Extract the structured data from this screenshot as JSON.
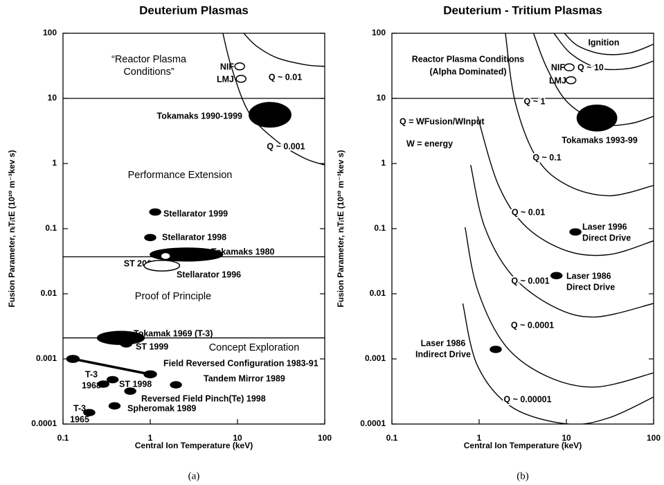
{
  "chart_data": [
    {
      "type": "scatter",
      "title": "Deuterium Plasmas",
      "caption": "(a)",
      "xlabel": "Central Ion Temperature (keV)",
      "ylabel": "Fusion Parameter, nᵢTᵢτE (10²⁰ m⁻³kev s)",
      "log_x": true,
      "log_y": true,
      "xlim": [
        0.1,
        100
      ],
      "ylim": [
        0.0001,
        100
      ],
      "xticks": [
        0.1,
        1,
        10,
        100
      ],
      "yticks": [
        0.0001,
        0.001,
        0.01,
        0.1,
        1,
        10,
        100
      ],
      "boundaries": [
        10,
        0.037,
        0.0021
      ],
      "regions": [
        {
          "label": [
            "“Reactor Plasma",
            "Conditions”"
          ]
        },
        {
          "label": [
            "Performance Extension"
          ]
        },
        {
          "label": [
            "Proof of Principle"
          ]
        },
        {
          "label": [
            "Concept Exploration"
          ]
        }
      ],
      "curves": [
        {
          "label": "Q ~ 0.01",
          "x": [
            11.8,
            16.4,
            28.3,
            58.9,
            100
          ],
          "y": [
            100,
            64,
            42,
            33,
            31
          ]
        },
        {
          "label": "Q ~ 0.001",
          "x": [
            6.8,
            8.6,
            13.6,
            28.3,
            58.9,
            100
          ],
          "y": [
            100,
            29,
            6.0,
            2.2,
            1.2,
            0.95
          ]
        }
      ],
      "points": [
        {
          "label": [
            "NIF"
          ],
          "x": 10.6,
          "y": 31,
          "style": "open"
        },
        {
          "label": [
            "LMJ"
          ],
          "x": 11,
          "y": 20,
          "style": "open"
        },
        {
          "label": [
            "Tokamaks 1990-1999"
          ],
          "x": 23.6,
          "y": 5.6,
          "style": "filled",
          "x_span": [
            13.6,
            41
          ],
          "y_span": [
            3.6,
            8.6
          ]
        },
        {
          "label": [
            "Stellarator 1999"
          ],
          "x": 1.14,
          "y": 0.18,
          "style": "filled"
        },
        {
          "label": [
            "Stellarator 1998"
          ],
          "x": 1.0,
          "y": 0.073,
          "style": "filled"
        },
        {
          "label": [
            "Tokamaks 1980"
          ],
          "x": 2.6,
          "y": 0.04,
          "style": "filled",
          "x_span": [
            1.0,
            6.8
          ],
          "y_span": [
            0.031,
            0.049
          ]
        },
        {
          "label": [
            "ST 2001"
          ],
          "x": 1.5,
          "y": 0.038,
          "style": "open"
        },
        {
          "label": [
            "Stellarator 1996"
          ],
          "x": 1.36,
          "y": 0.027,
          "style": "open",
          "x_span": [
            0.86,
            2.2
          ],
          "y_span": [
            0.022,
            0.032
          ]
        },
        {
          "label": [
            "Tokamak 1969 (T-3)"
          ],
          "x": 0.46,
          "y": 0.0021,
          "style": "filled",
          "x_span": [
            0.25,
            0.86
          ],
          "y_span": [
            0.0017,
            0.0027
          ]
        },
        {
          "label": [
            "ST 1999"
          ],
          "x": 0.53,
          "y": 0.0017,
          "style": "filled"
        },
        {
          "label": [
            "Field Reversed Configuration 1983-91"
          ],
          "x": [
            0.13,
            1.0
          ],
          "y": [
            0.001,
            0.00058
          ],
          "style": "filled"
        },
        {
          "label": [
            "ST  1998"
          ],
          "x": 0.37,
          "y": 0.00048,
          "style": "filled"
        },
        {
          "label": [
            "T-3",
            "1968"
          ],
          "x": 0.29,
          "y": 0.00041,
          "style": "filled"
        },
        {
          "label": [
            "Tandem Mirror 1989"
          ],
          "x": 1.97,
          "y": 0.0004,
          "style": "filled"
        },
        {
          "label": [
            "Reversed Field Pinch(Te)    1998"
          ],
          "x": 0.59,
          "y": 0.00032,
          "style": "filled"
        },
        {
          "label": [
            "Spheromak 1989"
          ],
          "x": 0.39,
          "y": 0.00019,
          "style": "filled"
        },
        {
          "label": [
            "T-3",
            "1965"
          ],
          "x": 0.2,
          "y": 0.00015,
          "style": "filled"
        }
      ]
    },
    {
      "type": "scatter",
      "title": "Deuterium - Tritium Plasmas",
      "caption": "(b)",
      "xlabel": "Central Ion Temperature (keV)",
      "ylabel": "Fusion Parameter, nᵢTᵢτE (10²⁰ m⁻³kev s)",
      "log_x": true,
      "log_y": true,
      "xlim": [
        0.1,
        100
      ],
      "ylim": [
        0.0001,
        100
      ],
      "xticks": [
        0.1,
        1,
        10,
        100
      ],
      "yticks": [
        0.0001,
        0.001,
        0.01,
        0.1,
        1,
        10,
        100
      ],
      "boundaries": [
        10
      ],
      "regions": [
        {
          "label": [
            "Reactor Plasma Conditions",
            "(Alpha Dominated)"
          ]
        },
        {
          "label": [
            "Q  = WFusion/WInput"
          ]
        },
        {
          "label": [
            "W = energy"
          ]
        }
      ],
      "curves": [
        {
          "label": "Ignition",
          "x": [
            9.5,
            13.6,
            25.9,
            53.7,
            100
          ],
          "y": [
            100,
            64,
            48,
            50,
            68
          ]
        },
        {
          "label": "Q ~ 10",
          "x": [
            7.2,
            11.4,
            23.6,
            53.7,
            100
          ],
          "y": [
            100,
            48,
            29,
            29,
            37.5
          ]
        },
        {
          "label": "Q ~ 1",
          "x": [
            4.2,
            6.0,
            10.4,
            25.9,
            53.7,
            100
          ],
          "y": [
            100,
            29,
            8.6,
            4.1,
            4.1,
            5.3
          ]
        },
        {
          "label": "Q ~ 0.1",
          "x": [
            2.0,
            2.6,
            4.6,
            10.4,
            31,
            100
          ],
          "y": [
            100,
            8.6,
            1.2,
            0.46,
            0.32,
            0.46
          ]
        },
        {
          "label": "Q ~ 0.01",
          "x": [
            0.96,
            1.67,
            3.5,
            10.4,
            31,
            100
          ],
          "y": [
            5.3,
            0.46,
            0.105,
            0.045,
            0.04,
            0.065
          ]
        },
        {
          "label": "Q ~ 0.001",
          "x": [
            0.8,
            1.16,
            2.4,
            7.2,
            21.5,
            100
          ],
          "y": [
            0.95,
            0.105,
            0.019,
            0.0063,
            0.0044,
            0.0071
          ]
        },
        {
          "label": "Q ~ 0.0001",
          "x": [
            0.69,
            0.96,
            2.0,
            6.0,
            21.5,
            100
          ],
          "y": [
            0.105,
            0.0115,
            0.0016,
            0.00054,
            0.00037,
            0.00061
          ]
        },
        {
          "label": "Q ~ 0.00001",
          "x": [
            0.65,
            0.96,
            2.4,
            10.4,
            31,
            100
          ],
          "y": [
            0.0071,
            0.00078,
            0.00018,
            0.0001,
            0.000125,
            0.00026
          ]
        }
      ],
      "points": [
        {
          "label": [
            "NIF"
          ],
          "x": 10.8,
          "y": 30,
          "style": "open"
        },
        {
          "label": [
            "LMJ"
          ],
          "x": 11.3,
          "y": 19,
          "style": "open"
        },
        {
          "label": [
            "Tokamaks 1993-99"
          ],
          "x": 22.4,
          "y": 5.0,
          "style": "filled",
          "x_span": [
            13.6,
            38.7
          ],
          "y_span": [
            3.2,
            8.0
          ]
        },
        {
          "label": [
            "Laser  1996",
            "Direct Drive"
          ],
          "x": 12.7,
          "y": 0.089,
          "style": "filled"
        },
        {
          "label": [
            "Laser  1986",
            "Direct Drive"
          ],
          "x": 7.7,
          "y": 0.019,
          "style": "filled"
        },
        {
          "label": [
            "Laser  1986",
            "Indirect Drive"
          ],
          "x": 1.55,
          "y": 0.0014,
          "style": "filled"
        }
      ]
    }
  ]
}
